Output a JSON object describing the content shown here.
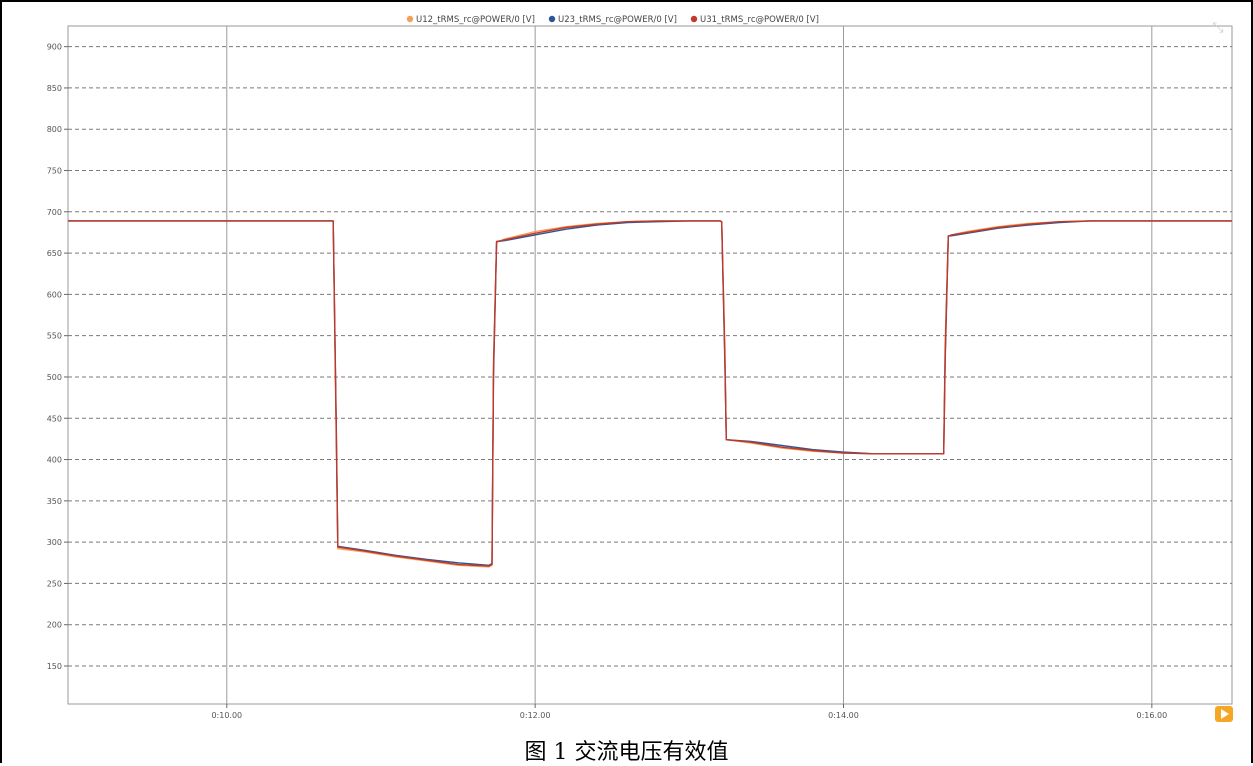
{
  "caption": "图 1 交流电压有效值",
  "controls": {
    "play_icon": "play-icon",
    "zoom_icon": "zoom-reset-icon"
  },
  "chart_data": {
    "type": "line",
    "title": "",
    "xlabel": "",
    "ylabel": "",
    "y_ticks": [
      150,
      200,
      250,
      300,
      350,
      400,
      450,
      500,
      550,
      600,
      650,
      700,
      750,
      800,
      850,
      900
    ],
    "ylim": [
      104,
      925
    ],
    "x_ticks": [
      {
        "v": 10,
        "label": "0:10.00"
      },
      {
        "v": 12,
        "label": "0:12.00"
      },
      {
        "v": 14,
        "label": "0:14.00"
      },
      {
        "v": 16,
        "label": "0:16.00"
      }
    ],
    "xlim": [
      8.97,
      16.52
    ],
    "grid": true,
    "legend_position": "top-center",
    "series": [
      {
        "name": "U12_tRMS_rc@POWER/0 [V]",
        "color": "#f5a05a",
        "x": [
          8.97,
          10.68,
          10.69,
          10.71,
          10.72,
          10.9,
          11.1,
          11.3,
          11.5,
          11.7,
          11.72,
          11.73,
          11.75,
          11.8,
          12.0,
          12.2,
          12.4,
          12.6,
          12.8,
          13.0,
          13.2,
          13.21,
          13.23,
          13.24,
          13.4,
          13.6,
          13.8,
          14.0,
          14.2,
          14.4,
          14.65,
          14.66,
          14.68,
          14.7,
          14.8,
          15.0,
          15.2,
          15.4,
          15.6,
          15.8,
          16.0,
          16.52
        ],
        "y": [
          689,
          689,
          688,
          420,
          292,
          288,
          282,
          277,
          272,
          270,
          272,
          520,
          663,
          667,
          676,
          682,
          686,
          688,
          689,
          689,
          689,
          687,
          540,
          424,
          420,
          414,
          410,
          408,
          407,
          407,
          407,
          545,
          670,
          672,
          676,
          682,
          686,
          688,
          689,
          689,
          689,
          689
        ]
      },
      {
        "name": "U23_tRMS_rc@POWER/0 [V]",
        "color": "#2f5597",
        "x": [
          8.97,
          10.68,
          10.69,
          10.71,
          10.72,
          10.9,
          11.1,
          11.3,
          11.5,
          11.7,
          11.72,
          11.73,
          11.75,
          11.8,
          12.0,
          12.2,
          12.4,
          12.6,
          12.8,
          13.0,
          13.2,
          13.21,
          13.23,
          13.24,
          13.4,
          13.6,
          13.8,
          14.0,
          14.2,
          14.4,
          14.65,
          14.66,
          14.68,
          14.7,
          14.8,
          15.0,
          15.2,
          15.4,
          15.6,
          15.8,
          16.0,
          16.52
        ],
        "y": [
          689,
          689,
          689,
          440,
          295,
          290,
          284,
          279,
          275,
          272,
          274,
          500,
          664,
          665,
          672,
          679,
          684,
          687,
          688,
          689,
          689,
          688,
          520,
          424,
          422,
          417,
          412,
          409,
          407,
          407,
          407,
          520,
          671,
          671,
          674,
          680,
          684,
          687,
          689,
          689,
          689,
          689
        ]
      },
      {
        "name": "U31_tRMS_rc@POWER/0 [V]",
        "color": "#c0392b",
        "x": [
          8.97,
          10.68,
          10.69,
          10.71,
          10.72,
          10.9,
          11.1,
          11.3,
          11.5,
          11.7,
          11.72,
          11.73,
          11.75,
          11.8,
          12.0,
          12.2,
          12.4,
          12.6,
          12.8,
          13.0,
          13.2,
          13.21,
          13.23,
          13.24,
          13.4,
          13.6,
          13.8,
          14.0,
          14.2,
          14.4,
          14.65,
          14.66,
          14.68,
          14.7,
          14.8,
          15.0,
          15.2,
          15.4,
          15.6,
          15.8,
          16.0,
          16.52
        ],
        "y": [
          689,
          689,
          689,
          430,
          294,
          289,
          283,
          278,
          273,
          271,
          273,
          510,
          664,
          666,
          674,
          681,
          685,
          688,
          689,
          689,
          689,
          688,
          530,
          424,
          421,
          415,
          411,
          408,
          407,
          407,
          407,
          530,
          670,
          672,
          675,
          681,
          685,
          688,
          689,
          689,
          689,
          689
        ]
      }
    ]
  }
}
